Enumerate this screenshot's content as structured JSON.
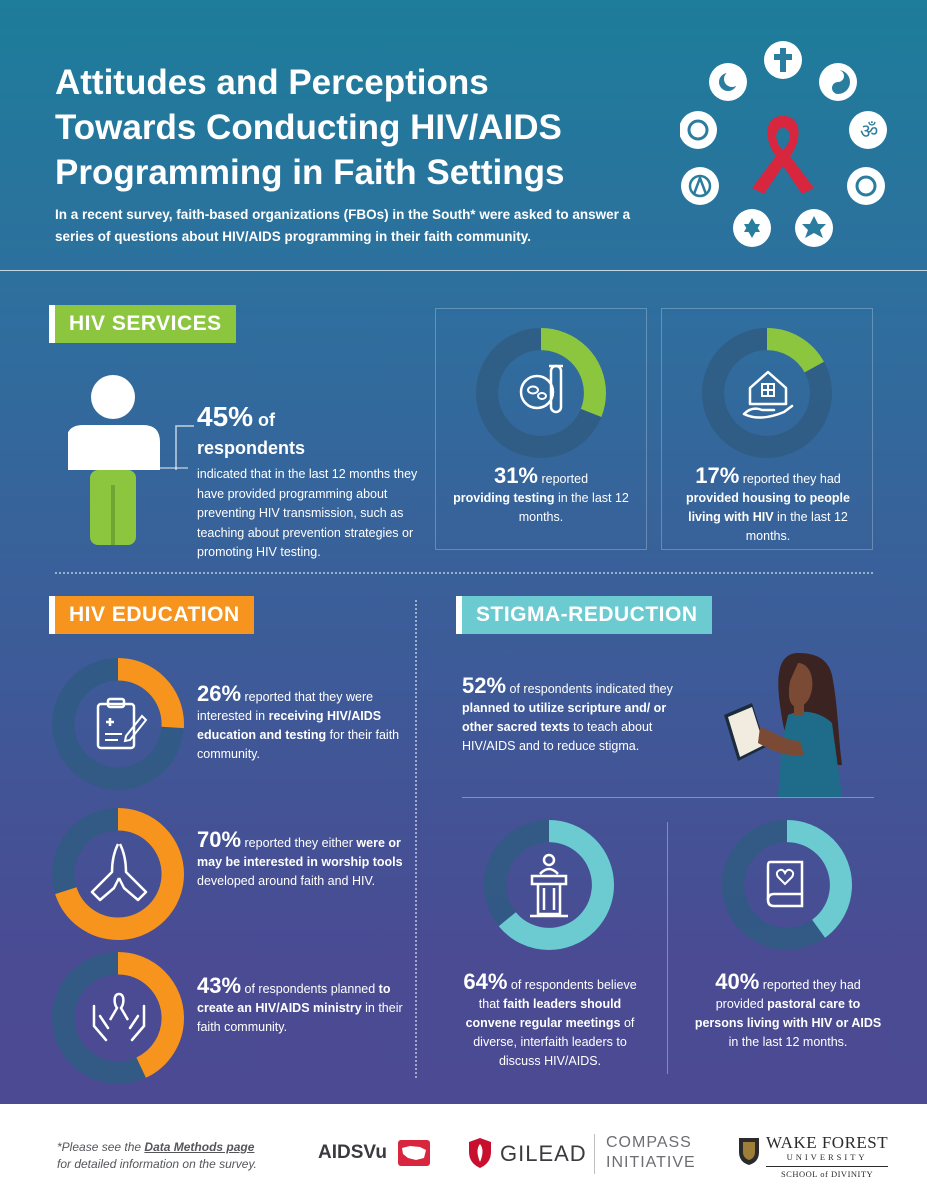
{
  "header": {
    "title_line1": "Attitudes and Perceptions",
    "title_line2": "Towards Conducting HIV/AIDS",
    "title_line3": "Programming in Faith Settings",
    "subtitle": "In a recent survey, faith-based organizations (FBOs) in the South* were asked to answer a series of questions about HIV/AIDS programming in their faith community."
  },
  "sections": {
    "services": "HIV SERVICES",
    "education": "HIV EDUCATION",
    "stigma": "STIGMA-REDUCTION"
  },
  "services": {
    "main": {
      "pct": "45%",
      "of": " of",
      "resp": "respondents",
      "text": "indicated that in the last 12 months they have provided programming about preventing HIV transmission, such as teaching about prevention strategies or promoting HIV testing."
    },
    "testing": {
      "pct": "31%",
      "t1": " reported",
      "b1": "providing testing",
      "t2": " in the last 12 months.",
      "value": 0.31
    },
    "housing": {
      "pct": "17%",
      "t1": " reported they had",
      "b1": "provided housing to people living with HIV",
      "t2": " in the last 12 months.",
      "value": 0.17
    }
  },
  "education": {
    "e1": {
      "pct": "26%",
      "t1": " reported that they were interested in ",
      "b1": "receiving HIV/AIDS education and testing",
      "t2": " for their faith community.",
      "value": 0.26
    },
    "e2": {
      "pct": "70%",
      "t1": " reported they either ",
      "b1": "were or may be interested in worship tools",
      "t2": " developed around faith and HIV.",
      "value": 0.7
    },
    "e3": {
      "pct": "43%",
      "t1": "  of respondents planned ",
      "b1": "to create an HIV/AIDS ministry",
      "t2": " in their faith community.",
      "value": 0.43
    }
  },
  "stigma": {
    "s1": {
      "pct": "52%",
      "t1": " of respondents indicated they ",
      "b1": "planned to utilize scripture and/ or other sacred texts",
      "t2": " to teach about HIV/AIDS and to reduce stigma."
    },
    "s2": {
      "pct": "64%",
      "t1": " of respondents believe that ",
      "b1": "faith leaders should convene regular meetings",
      "t2": " of diverse, interfaith leaders to discuss HIV/AIDS.",
      "value": 0.64
    },
    "s3": {
      "pct": "40%",
      "t1": " reported they had provided ",
      "b1": "pastoral care to persons living with HIV or AIDS",
      "t2": " in the last 12 months.",
      "value": 0.4
    }
  },
  "footer": {
    "note_pre": "*Please see the ",
    "note_link": "Data Methods page",
    "note_post": "for detailed information on the survey.",
    "logo_aidsvu": "AIDSVu",
    "logo_gilead": "GILEAD",
    "compass1": "COMPASS",
    "compass2": "INITIATIVE",
    "wf1": "WAKE FOREST",
    "wf2": "UNIVERSITY",
    "wf3": "SCHOOL of DIVINITY"
  },
  "colors": {
    "green": "#8cc63f",
    "orange": "#f7941d",
    "teal": "#6ccad1",
    "ring_bg": "#2f5c82",
    "ribbon": "#d7263d"
  }
}
